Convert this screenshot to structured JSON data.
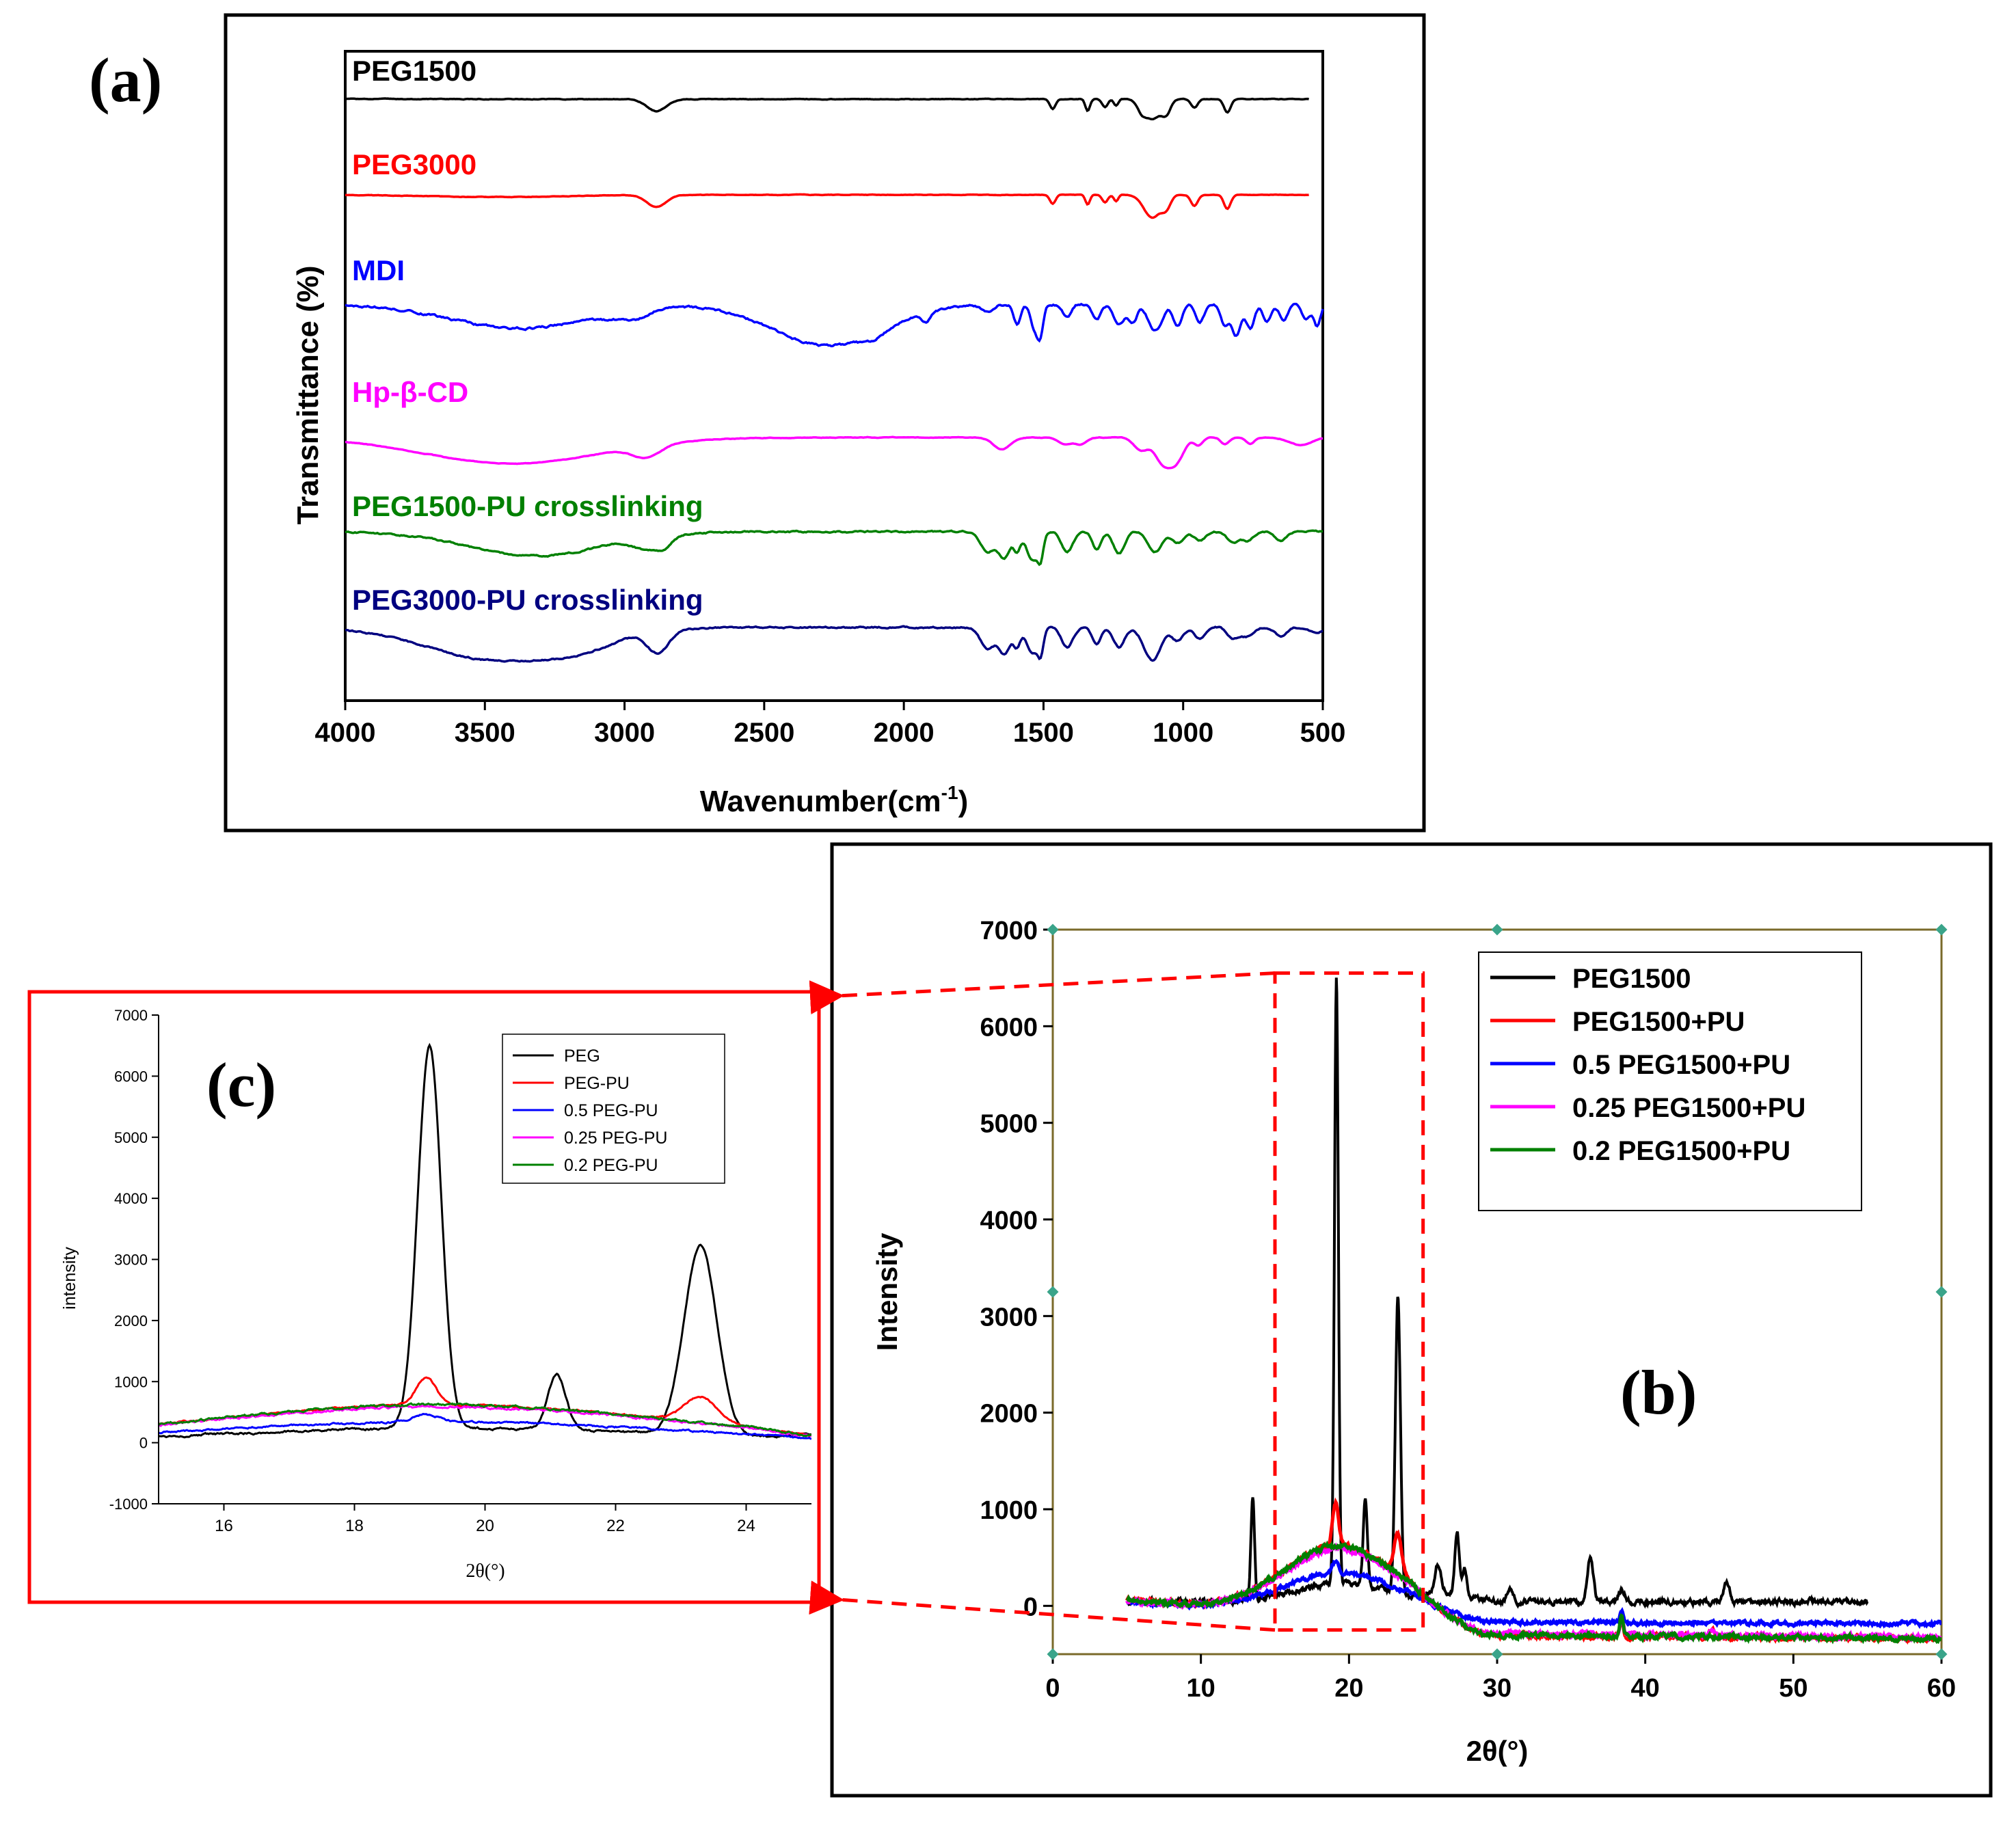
{
  "figure": {
    "panel_labels": {
      "a": "(a)",
      "b": "(b)",
      "c": "(c)"
    }
  },
  "chart_data": [
    {
      "id": "a",
      "type": "line",
      "title": "",
      "xlabel": "Wavenumber(cm-1)",
      "xlabel_base": "Wavenumber(cm",
      "xlabel_sup": "-1",
      "xlabel_close": ")",
      "ylabel": "Transmittance (%)",
      "xlim": [
        4000,
        500
      ],
      "xticks": [
        4000,
        3500,
        3000,
        2500,
        2000,
        1500,
        1000,
        500
      ],
      "legend": "inline labels above each trace",
      "series": [
        {
          "name": "PEG1500",
          "color": "#000000",
          "x_range": [
            4000,
            550
          ],
          "base": 0,
          "noise": 0.02,
          "bands": [
            [
              2885,
              0.55,
              35
            ],
            [
              1467,
              0.45,
              10
            ],
            [
              1342,
              0.55,
              8
            ],
            [
              1280,
              0.35,
              10
            ],
            [
              1240,
              0.3,
              8
            ],
            [
              1150,
              0.35,
              15
            ],
            [
              1110,
              0.9,
              30
            ],
            [
              1060,
              0.55,
              15
            ],
            [
              960,
              0.4,
              12
            ],
            [
              842,
              0.6,
              12
            ]
          ]
        },
        {
          "name": "PEG3000",
          "color": "#ff0000",
          "x_range": [
            4000,
            550
          ],
          "base": 0,
          "noise": 0.015,
          "bands": [
            [
              3450,
              0.1,
              250
            ],
            [
              2885,
              0.55,
              35
            ],
            [
              1467,
              0.4,
              10
            ],
            [
              1342,
              0.45,
              8
            ],
            [
              1280,
              0.35,
              10
            ],
            [
              1240,
              0.3,
              8
            ],
            [
              1110,
              1.05,
              30
            ],
            [
              1060,
              0.5,
              15
            ],
            [
              960,
              0.5,
              12
            ],
            [
              842,
              0.65,
              12
            ]
          ]
        },
        {
          "name": "MDI",
          "color": "#0000ff",
          "x_range": [
            4000,
            500
          ],
          "base": 0,
          "noise": 0.07,
          "bands": [
            [
              3380,
              1.1,
              250
            ],
            [
              3000,
              0.3,
              80
            ],
            [
              2960,
              0.2,
              30
            ],
            [
              2270,
              1.9,
              200
            ],
            [
              2110,
              0.3,
              40
            ],
            [
              1920,
              0.45,
              15
            ],
            [
              1700,
              0.3,
              20
            ],
            [
              1595,
              0.9,
              12
            ],
            [
              1530,
              1.2,
              15
            ],
            [
              1510,
              1.1,
              10
            ],
            [
              1415,
              0.6,
              15
            ],
            [
              1310,
              0.7,
              15
            ],
            [
              1230,
              0.9,
              20
            ],
            [
              1180,
              0.8,
              15
            ],
            [
              1100,
              1.2,
              25
            ],
            [
              1020,
              1.0,
              15
            ],
            [
              940,
              0.8,
              15
            ],
            [
              850,
              1.0,
              15
            ],
            [
              810,
              1.4,
              15
            ],
            [
              760,
              1.1,
              15
            ],
            [
              700,
              0.8,
              15
            ],
            [
              640,
              0.7,
              15
            ],
            [
              560,
              0.7,
              15
            ],
            [
              520,
              1.0,
              12
            ]
          ]
        },
        {
          "name": "Hp-β-CD",
          "color": "#ff00ff",
          "x_range": [
            4000,
            500
          ],
          "base": 0,
          "noise": 0.02,
          "bands": [
            [
              3400,
              1.2,
              320
            ],
            [
              2920,
              0.55,
              50
            ],
            [
              1650,
              0.55,
              30
            ],
            [
              1420,
              0.3,
              25
            ],
            [
              1365,
              0.3,
              20
            ],
            [
              1150,
              0.6,
              25
            ],
            [
              1080,
              0.9,
              25
            ],
            [
              1030,
              1.2,
              30
            ],
            [
              945,
              0.35,
              15
            ],
            [
              850,
              0.3,
              15
            ],
            [
              760,
              0.3,
              15
            ],
            [
              580,
              0.35,
              40
            ]
          ]
        },
        {
          "name": "PEG1500-PU crosslinking",
          "color": "#008000",
          "x_range": [
            4000,
            500
          ],
          "base": 0,
          "noise": 0.05,
          "bands": [
            [
              3320,
              1.1,
              240
            ],
            [
              2920,
              0.5,
              50
            ],
            [
              2860,
              0.4,
              30
            ],
            [
              1700,
              0.9,
              25
            ],
            [
              1640,
              1.2,
              20
            ],
            [
              1595,
              0.8,
              12
            ],
            [
              1540,
              1.3,
              20
            ],
            [
              1510,
              1.0,
              10
            ],
            [
              1415,
              0.9,
              20
            ],
            [
              1310,
              0.8,
              15
            ],
            [
              1230,
              1.0,
              20
            ],
            [
              1100,
              0.9,
              25
            ],
            [
              1020,
              0.5,
              20
            ],
            [
              940,
              0.4,
              20
            ],
            [
              820,
              0.5,
              20
            ],
            [
              770,
              0.4,
              20
            ],
            [
              650,
              0.4,
              20
            ]
          ]
        },
        {
          "name": "PEG3000-PU crosslinking",
          "color": "#000080",
          "x_range": [
            4000,
            500
          ],
          "base": 0,
          "noise": 0.05,
          "bands": [
            [
              3450,
              1.5,
              250
            ],
            [
              3150,
              0.5,
              120
            ],
            [
              2880,
              1.0,
              40
            ],
            [
              1700,
              1.0,
              25
            ],
            [
              1640,
              1.2,
              20
            ],
            [
              1595,
              0.8,
              12
            ],
            [
              1540,
              1.2,
              20
            ],
            [
              1510,
              1.0,
              10
            ],
            [
              1415,
              0.9,
              20
            ],
            [
              1310,
              0.8,
              15
            ],
            [
              1230,
              0.9,
              20
            ],
            [
              1110,
              1.5,
              30
            ],
            [
              1020,
              0.6,
              20
            ],
            [
              940,
              0.5,
              20
            ],
            [
              820,
              0.5,
              20
            ],
            [
              770,
              0.4,
              20
            ],
            [
              650,
              0.4,
              20
            ],
            [
              520,
              0.3,
              20
            ]
          ]
        }
      ]
    },
    {
      "id": "b",
      "type": "line",
      "title": "",
      "xlabel": "2θ(°)",
      "ylabel": "Intensity",
      "xlim": [
        0,
        60
      ],
      "ylim": [
        -500,
        7000
      ],
      "xticks": [
        0,
        10,
        20,
        30,
        40,
        50,
        60
      ],
      "yticks": [
        0,
        1000,
        2000,
        3000,
        4000,
        5000,
        6000,
        7000
      ],
      "legend": "top-right",
      "zoom_region": {
        "x": [
          15,
          25
        ],
        "y": [
          -250,
          6550
        ]
      },
      "series": [
        {
          "name": "PEG1500",
          "color": "#000000",
          "x_range": [
            5,
            55
          ],
          "baseline": "peg",
          "noise": 35,
          "peaks": [
            [
              13.5,
              1080,
              0.12
            ],
            [
              19.15,
              6250,
              0.13
            ],
            [
              21.1,
              900,
              0.14
            ],
            [
              23.3,
              3100,
              0.17
            ],
            [
              26.0,
              300,
              0.2
            ],
            [
              27.3,
              640,
              0.15
            ],
            [
              27.8,
              280,
              0.15
            ],
            [
              30.9,
              150,
              0.2
            ],
            [
              36.3,
              460,
              0.2
            ],
            [
              38.4,
              120,
              0.25
            ],
            [
              45.5,
              220,
              0.2
            ]
          ]
        },
        {
          "name": "PEG1500+PU",
          "color": "#ff0000",
          "x_range": [
            5,
            60
          ],
          "baseline": "pu",
          "noise": 30,
          "peaks": [
            [
              19.1,
              450,
              0.2
            ],
            [
              23.3,
              420,
              0.25
            ],
            [
              38.4,
              150,
              0.12
            ],
            [
              44.5,
              80,
              0.15
            ]
          ]
        },
        {
          "name": "0.5 PEG1500+PU",
          "color": "#0000ff",
          "x_range": [
            5,
            60
          ],
          "baseline": "pu",
          "scale": 0.55,
          "noise": 25,
          "peaks": [
            [
              19.1,
              120,
              0.2
            ],
            [
              38.4,
              120,
              0.12
            ]
          ]
        },
        {
          "name": "0.25 PEG1500+PU",
          "color": "#ff00ff",
          "x_range": [
            5,
            60
          ],
          "baseline": "pu",
          "scale": 0.95,
          "noise": 30,
          "peaks": [
            [
              38.4,
              150,
              0.12
            ],
            [
              44.5,
              80,
              0.15
            ]
          ]
        },
        {
          "name": "0.2 PEG1500+PU",
          "color": "#008000",
          "x_range": [
            5,
            60
          ],
          "baseline": "pu",
          "scale": 1.0,
          "noise": 30,
          "peaks": [
            [
              38.4,
              200,
              0.12
            ]
          ]
        }
      ]
    },
    {
      "id": "c",
      "type": "line",
      "title": "",
      "xlabel": "2θ(°)",
      "ylabel": "intensity",
      "xlim": [
        15,
        25
      ],
      "ylim": [
        -1000,
        7000
      ],
      "xticks": [
        16,
        18,
        20,
        22,
        24
      ],
      "yticks": [
        -1000,
        0,
        1000,
        2000,
        3000,
        4000,
        5000,
        6000,
        7000
      ],
      "legend": "top-right",
      "series": [
        {
          "name": "PEG",
          "color": "#000000",
          "baseline": "peg",
          "noise": 25,
          "peaks": [
            [
              19.15,
              6250,
              0.18
            ],
            [
              21.1,
              900,
              0.14
            ],
            [
              23.3,
              3100,
              0.25
            ]
          ]
        },
        {
          "name": "PEG-PU",
          "color": "#ff0000",
          "baseline": "pu",
          "noise": 20,
          "peaks": [
            [
              19.1,
              450,
              0.15
            ],
            [
              23.3,
              420,
              0.25
            ]
          ]
        },
        {
          "name": "0.5 PEG-PU",
          "color": "#0000ff",
          "baseline": "pu",
          "scale": 0.55,
          "noise": 20,
          "peaks": [
            [
              19.1,
              120,
              0.2
            ]
          ]
        },
        {
          "name": "0.25 PEG-PU",
          "color": "#ff00ff",
          "baseline": "pu",
          "scale": 0.95,
          "noise": 25,
          "peaks": []
        },
        {
          "name": "0.2 PEG-PU",
          "color": "#008000",
          "baseline": "pu",
          "scale": 1.0,
          "noise": 25,
          "peaks": []
        }
      ]
    }
  ]
}
